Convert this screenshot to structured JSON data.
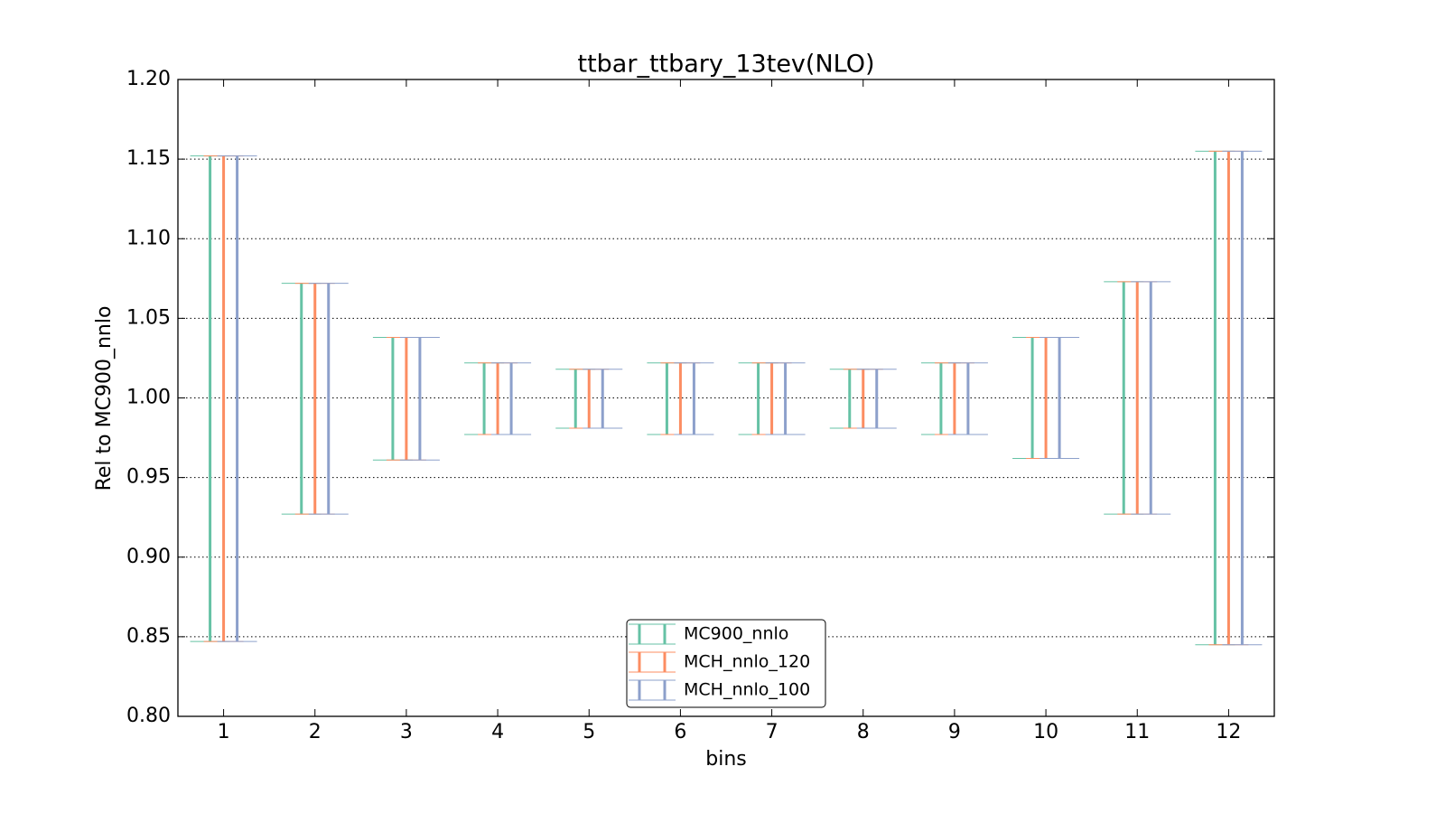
{
  "chart_data": {
    "type": "errorbar",
    "title": "ttbar_ttbary_13tev(NLO)",
    "xlabel": "bins",
    "ylabel": "Rel to MC900_nnlo",
    "x": [
      1,
      2,
      3,
      4,
      5,
      6,
      7,
      8,
      9,
      10,
      11,
      12
    ],
    "xlim": [
      0.5,
      12.5
    ],
    "xticks": [
      1,
      2,
      3,
      4,
      5,
      6,
      7,
      8,
      9,
      10,
      11,
      12
    ],
    "ylim": [
      0.8,
      1.2
    ],
    "yticks": [
      {
        "value": 0.8,
        "label": "0.80"
      },
      0.85,
      {
        "value": 0.9,
        "label": "0.90"
      },
      0.95,
      {
        "value": 1.0,
        "label": "1.00"
      },
      1.05,
      {
        "value": 1.1,
        "label": "1.10"
      },
      1.15,
      {
        "value": 1.2,
        "label": "1.20"
      }
    ],
    "grid": true,
    "legend": "lower center",
    "series": [
      {
        "name": "MC900_nnlo",
        "color": "#66c2a5",
        "low": [
          0.847,
          0.927,
          0.961,
          0.977,
          0.981,
          0.977,
          0.977,
          0.981,
          0.977,
          0.962,
          0.927,
          0.845
        ],
        "high": [
          1.152,
          1.072,
          1.038,
          1.022,
          1.018,
          1.022,
          1.022,
          1.018,
          1.022,
          1.038,
          1.073,
          1.155
        ]
      },
      {
        "name": "MCH_nnlo_120",
        "color": "#fc8d62",
        "low": [
          0.847,
          0.927,
          0.961,
          0.977,
          0.981,
          0.977,
          0.977,
          0.981,
          0.977,
          0.962,
          0.927,
          0.845
        ],
        "high": [
          1.152,
          1.072,
          1.038,
          1.022,
          1.018,
          1.022,
          1.022,
          1.018,
          1.022,
          1.038,
          1.073,
          1.155
        ]
      },
      {
        "name": "MCH_nnlo_100",
        "color": "#8da0cb",
        "low": [
          0.847,
          0.927,
          0.961,
          0.977,
          0.981,
          0.977,
          0.977,
          0.981,
          0.977,
          0.962,
          0.927,
          0.845
        ],
        "high": [
          1.152,
          1.072,
          1.038,
          1.022,
          1.018,
          1.022,
          1.022,
          1.018,
          1.022,
          1.038,
          1.073,
          1.155
        ]
      }
    ]
  }
}
